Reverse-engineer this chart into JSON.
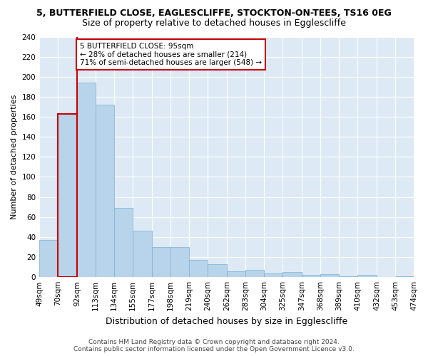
{
  "title": "5, BUTTERFIELD CLOSE, EAGLESCLIFFE, STOCKTON-ON-TEES, TS16 0EG",
  "subtitle": "Size of property relative to detached houses in Egglescliffe",
  "xlabel": "Distribution of detached houses by size in Egglescliffe",
  "ylabel": "Number of detached properties",
  "bar_edges": [
    49,
    70,
    92,
    113,
    134,
    155,
    177,
    198,
    219,
    240,
    262,
    283,
    304,
    325,
    347,
    368,
    389,
    410,
    432,
    453,
    474
  ],
  "bar_heights": [
    37,
    163,
    194,
    172,
    69,
    46,
    30,
    30,
    17,
    13,
    6,
    7,
    4,
    5,
    2,
    3,
    1,
    2,
    0,
    1
  ],
  "bar_color": "#b8d4ea",
  "bar_edge_color": "#7aafd4",
  "highlight_bar_index": 1,
  "highlight_bar_color": "#b8d4ea",
  "highlight_bar_edge_color": "#cc0000",
  "property_line_x": 92,
  "property_line_color": "#cc0000",
  "annotation_box_text": "5 BUTTERFIELD CLOSE: 95sqm\n← 28% of detached houses are smaller (214)\n71% of semi-detached houses are larger (548) →",
  "annotation_box_facecolor": "white",
  "annotation_box_edgecolor": "#cc0000",
  "ylim": [
    0,
    240
  ],
  "yticks": [
    0,
    20,
    40,
    60,
    80,
    100,
    120,
    140,
    160,
    180,
    200,
    220,
    240
  ],
  "tick_labels": [
    "49sqm",
    "70sqm",
    "92sqm",
    "113sqm",
    "134sqm",
    "155sqm",
    "177sqm",
    "198sqm",
    "219sqm",
    "240sqm",
    "262sqm",
    "283sqm",
    "304sqm",
    "325sqm",
    "347sqm",
    "368sqm",
    "389sqm",
    "410sqm",
    "432sqm",
    "453sqm",
    "474sqm"
  ],
  "bg_color": "#ddeaf5",
  "grid_color": "white",
  "footer_line1": "Contains HM Land Registry data © Crown copyright and database right 2024.",
  "footer_line2": "Contains public sector information licensed under the Open Government Licence v3.0.",
  "title_fontsize": 9,
  "subtitle_fontsize": 9,
  "xlabel_fontsize": 9,
  "ylabel_fontsize": 8,
  "tick_fontsize": 7.5,
  "footer_fontsize": 6.5
}
